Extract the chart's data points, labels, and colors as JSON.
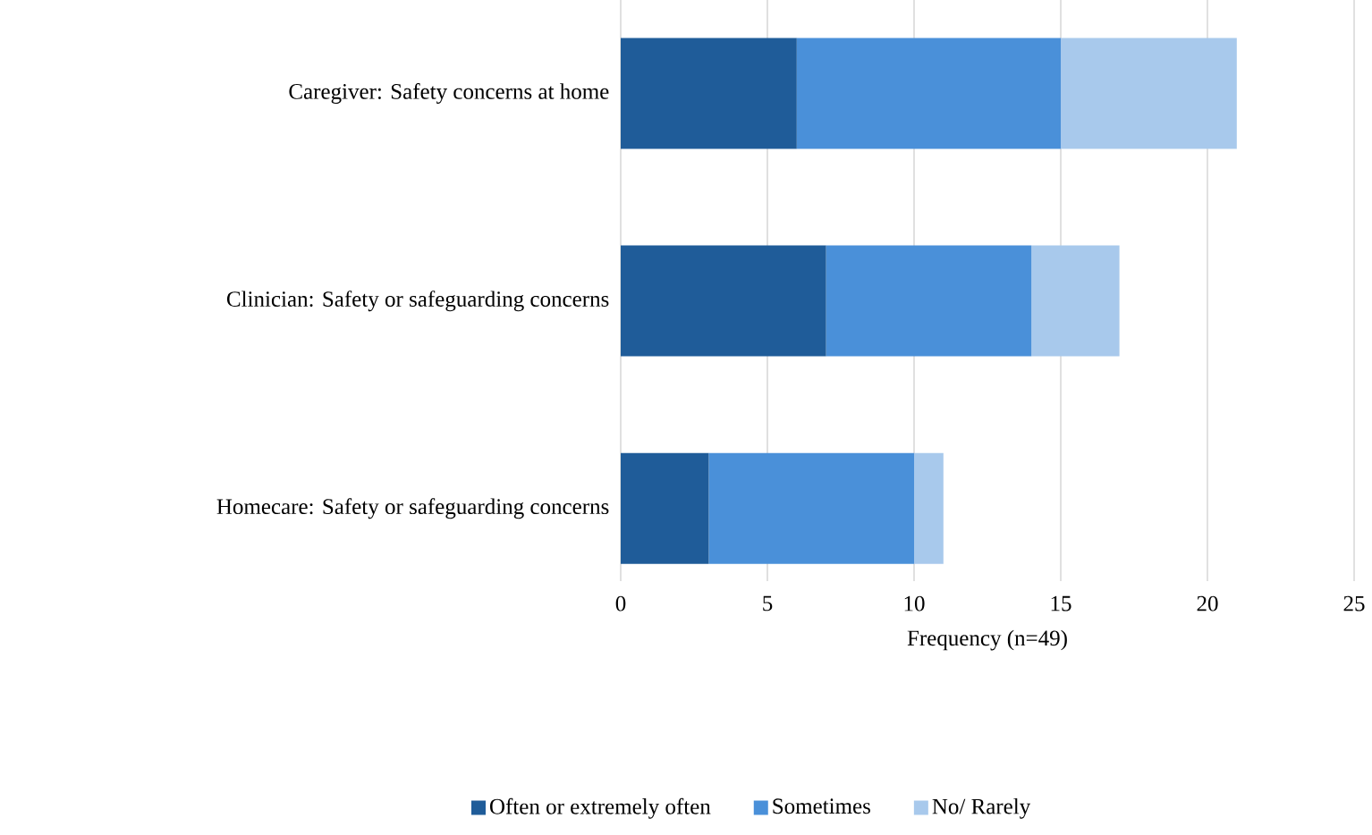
{
  "chart_data": {
    "type": "bar",
    "orientation": "horizontal",
    "stacked": true,
    "categories": [
      "Caregiver: Safety concerns at home",
      "Clinician: Safety or safeguarding concerns",
      "Homecare: Safety or safeguarding concerns"
    ],
    "series": [
      {
        "name": "Often or extremely often",
        "color": "#1f5c99",
        "values": [
          6,
          7,
          3
        ]
      },
      {
        "name": "Sometimes",
        "color": "#4a90d9",
        "values": [
          9,
          7,
          7
        ]
      },
      {
        "name": "No/ Rarely",
        "color": "#a8c9ec",
        "values": [
          6,
          3,
          1
        ]
      }
    ],
    "xlabel": "Frequency (n=49)",
    "xlim": [
      0,
      25
    ],
    "xticks": [
      0,
      5,
      10,
      15,
      20,
      25
    ],
    "grid": "x",
    "legend": "bottom"
  }
}
